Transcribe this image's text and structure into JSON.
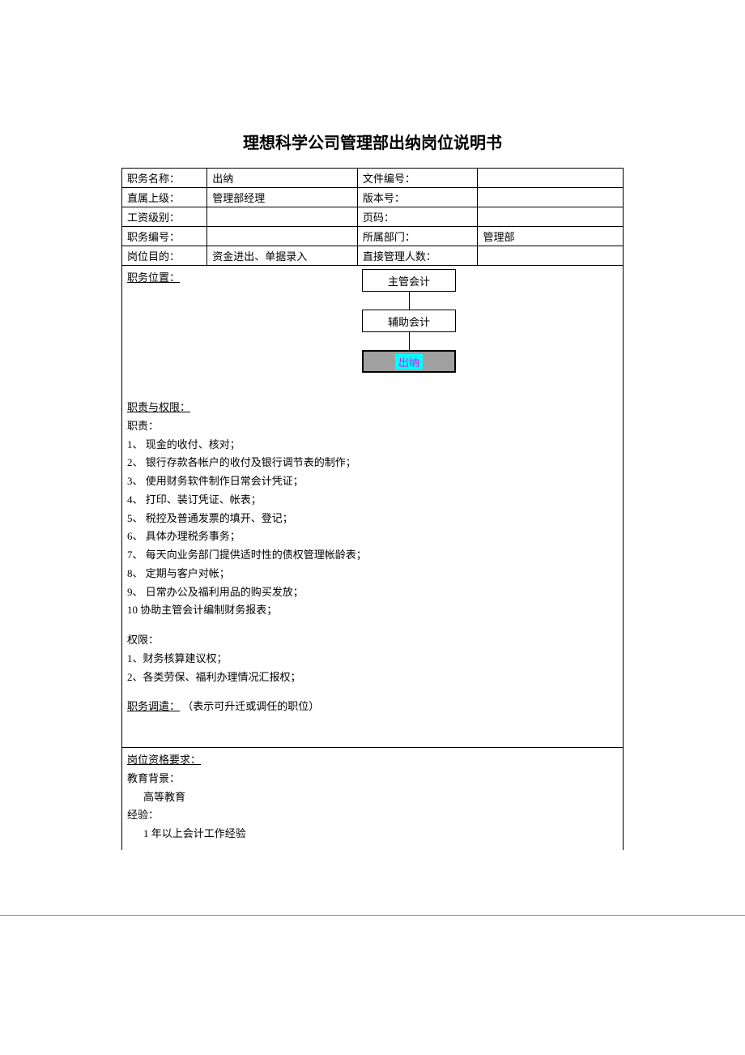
{
  "title": "理想科学公司管理部出纳岗位说明书",
  "info_rows": [
    {
      "l_label": "职务名称：",
      "l_value": "出纳",
      "r_label": "文件编号：",
      "r_value": ""
    },
    {
      "l_label": "直属上级：",
      "l_value": "管理部经理",
      "r_label": "版本号：",
      "r_value": ""
    },
    {
      "l_label": "工资级别：",
      "l_value": "",
      "r_label": "页码：",
      "r_value": ""
    },
    {
      "l_label": "职务编号：",
      "l_value": "",
      "r_label": "所属部门：",
      "r_value": "管理部"
    },
    {
      "l_label": "岗位目的：",
      "l_value": "资金进出、单据录入",
      "r_label": "直接管理人数：",
      "r_value": ""
    }
  ],
  "position_label": "职务位置：",
  "org": {
    "box1": "主管会计",
    "box2": "辅助会计",
    "box3": "出纳"
  },
  "duties_header": "职责与权限：",
  "duties_label": "职责：",
  "duties": [
    "现金的收付、核对；",
    "银行存款各帐户的收付及银行调节表的制作；",
    "使用财务软件制作日常会计凭证；",
    "打印、装订凭证、帐表；",
    "税控及普通发票的填开、登记；",
    "具体办理税务事务；",
    "每天向业务部门提供适时性的债权管理帐龄表；",
    "定期与客户对帐；",
    "日常办公及福利用品的购买发放；",
    "协助主管会计编制财务报表；"
  ],
  "auth_label": "权限：",
  "auth": [
    "1、财务核算建议权；",
    "2、各类劳保、福利办理情况汇报权；"
  ],
  "transfer_label": "职务调遣：",
  "transfer_note": "（表示可升迁或调任的职位）",
  "qual_header": "岗位资格要求：",
  "edu_label": "教育背景：",
  "edu_value": "高等教育",
  "exp_label": "经验：",
  "exp_value": "1 年以上会计工作经验"
}
